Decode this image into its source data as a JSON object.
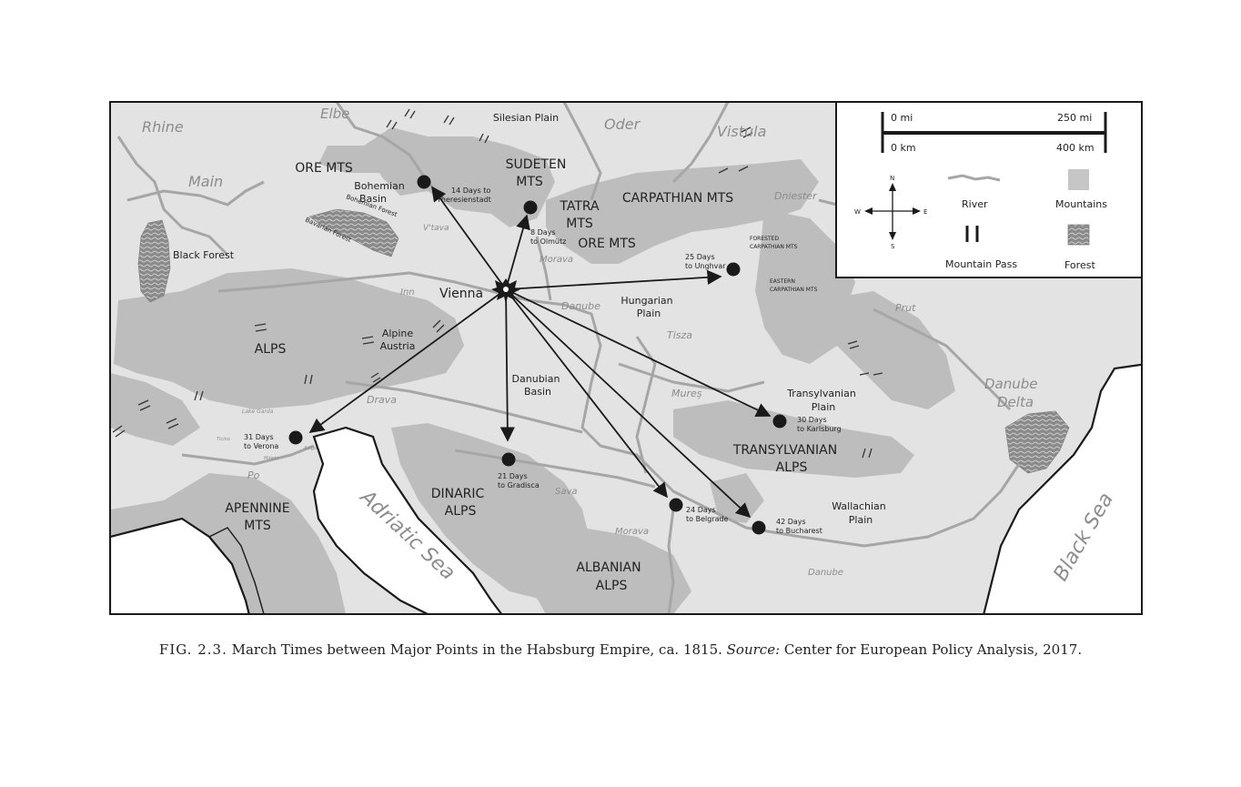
{
  "map": {
    "origin": "Vienna",
    "seas": [
      "Adriatic Sea",
      "Black Sea"
    ],
    "danube_delta": [
      "Danube",
      "Delta"
    ],
    "rivers": [
      "Rhine",
      "Elbe",
      "Oder",
      "Vistula",
      "Main",
      "Dniester",
      "V'tava",
      "Morava",
      "Inn",
      "Danube",
      "Prut",
      "Tisza",
      "Mureș",
      "Drava",
      "Sava",
      "Po",
      "Ticino",
      "Mincio",
      "Adige",
      "Lake Garda",
      "Morava",
      "Danube"
    ],
    "mountains": [
      [
        "ORE MTS"
      ],
      [
        "SUDETEN",
        "MTS"
      ],
      [
        "TATRA",
        "MTS"
      ],
      [
        "ORE MTS"
      ],
      [
        "CARPATHIAN MTS"
      ],
      [
        "ALPS"
      ],
      [
        "DINARIC",
        "ALPS"
      ],
      [
        "APENNINE",
        "MTS"
      ],
      [
        "ALBANIAN",
        "ALPS"
      ],
      [
        "TRANSYLVANIAN",
        "ALPS"
      ]
    ],
    "regions": [
      [
        "Silesian Plain"
      ],
      [
        "Bohemian",
        "Basin"
      ],
      [
        "Black Forest"
      ],
      [
        "Alpine",
        "Austria"
      ],
      [
        "Hungarian",
        "Plain"
      ],
      [
        "Danubian",
        "Basin"
      ],
      [
        "Transylvanian",
        "Plain"
      ],
      [
        "Wallachian",
        "Plain"
      ]
    ],
    "small_regions": [
      [
        "Bohemian Forest"
      ],
      [
        "Bavarian Forest"
      ],
      [
        "FORESTED",
        "CARPATHIAN MTS"
      ],
      [
        "EASTERN",
        "CARPATHIAN MTS"
      ]
    ],
    "destinations": [
      [
        "14 Days to",
        "Theresienstadt"
      ],
      [
        "8 Days",
        "to Olmütz"
      ],
      [
        "25 Days",
        "to Unghvar"
      ],
      [
        "30 Days",
        "to Karlsburg"
      ],
      [
        "42 Days",
        "to Bucharest"
      ],
      [
        "24 Days",
        "to Belgrade"
      ],
      [
        "21 Days",
        "to Gradisca"
      ],
      [
        "31 Days",
        "to Verona"
      ]
    ]
  },
  "legend": {
    "scale_mi_start": "0 mi",
    "scale_mi_end": "250 mi",
    "scale_km_start": "0 km",
    "scale_km_end": "400 km",
    "compass": [
      "N",
      "S",
      "E",
      "W"
    ],
    "items": [
      "River",
      "Mountains",
      "Mountain Pass",
      "Forest"
    ]
  },
  "caption": {
    "figure": "FIG. 2.3.",
    "text": " March Times between Major Points in the Habsburg Empire, ca. 1815. ",
    "source_label": "Source:",
    "source": " Center for European Policy Analysis, 2017."
  },
  "colors": {
    "land": "#e2e2e2",
    "mountain": "#b9b9b9",
    "river": "#a6a6a6",
    "sea": "#ffffff",
    "border": "#1a1a1a"
  }
}
